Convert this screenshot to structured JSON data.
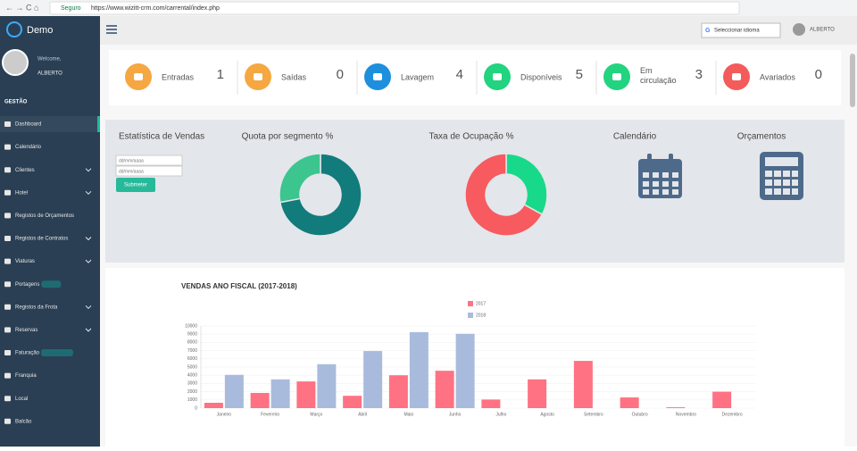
{
  "browser": {
    "secure": "Seguro",
    "url": "https://www.wizitt-crm.com/carrental/index.php"
  },
  "sidebar": {
    "brand": "Demo",
    "welcome": "Welcome,",
    "user": "ALBERTO",
    "section": "GESTÃO",
    "items": [
      "Dashboard",
      "Calendário",
      "Clientes",
      "Hotel",
      "Registos de Orçamentos",
      "Registos de Contratos",
      "Viaturas",
      "Portagens",
      "Registos da Frota",
      "Reservas",
      "Faturação",
      "Franquia",
      "Local",
      "Balcão"
    ]
  },
  "topbar": {
    "language": "Seleccionar idioma",
    "user": "ALBERTO"
  },
  "stats": [
    {
      "label": "Entradas",
      "value": 1,
      "color": "#f5a742"
    },
    {
      "label": "Saídas",
      "value": 0,
      "color": "#f5a742"
    },
    {
      "label": "Lavagem",
      "value": 4,
      "color": "#1e8fdc"
    },
    {
      "label": "Disponíveis",
      "value": 5,
      "color": "#22d37f"
    },
    {
      "label": "Em circulação",
      "value": 3,
      "color": "#22d37f"
    },
    {
      "label": "Avariados",
      "value": 0,
      "color": "#f45b5b"
    }
  ],
  "sales_form": {
    "title": "Estatística de Vendas",
    "date_from": "dd/mm/aaaa",
    "date_to": "dd/mm/aaaa",
    "submit": "Submeter"
  },
  "widgets": [
    {
      "title": "Calendário"
    },
    {
      "title": "Orçamentos"
    }
  ],
  "chart_data": [
    {
      "type": "donut",
      "title": "Quota por segmento %",
      "values": [
        72,
        28
      ],
      "colors": [
        "#127b7c",
        "#3cc58f"
      ]
    },
    {
      "type": "donut",
      "title": "Taxa de Ocupação %",
      "values": [
        33,
        67
      ],
      "colors": [
        "#18d98a",
        "#f75a5f"
      ]
    },
    {
      "type": "bar",
      "title": "VENDAS ANO FISCAL (2017-2018)",
      "categories": [
        "Janeiro",
        "Fevereiro",
        "Março",
        "Abril",
        "Maio",
        "Junho",
        "Julho",
        "Agosto",
        "Setembro",
        "Outubro",
        "Novembro",
        "Dezembro"
      ],
      "series": [
        {
          "name": "2017",
          "color": "#ff7283",
          "values": [
            650,
            1850,
            3250,
            1500,
            4000,
            4550,
            1050,
            3500,
            5750,
            1300,
            100,
            2000
          ]
        },
        {
          "name": "2018",
          "color": "#a9bbdc",
          "values": [
            4050,
            3500,
            5350,
            6950,
            9250,
            9050,
            0,
            0,
            0,
            0,
            0,
            0
          ]
        }
      ],
      "ylim": [
        0,
        10000
      ],
      "yticks": [
        0,
        1000,
        2000,
        3000,
        4000,
        5000,
        6000,
        7000,
        8000,
        9000,
        10000
      ],
      "grid": true,
      "legend": "top"
    }
  ]
}
